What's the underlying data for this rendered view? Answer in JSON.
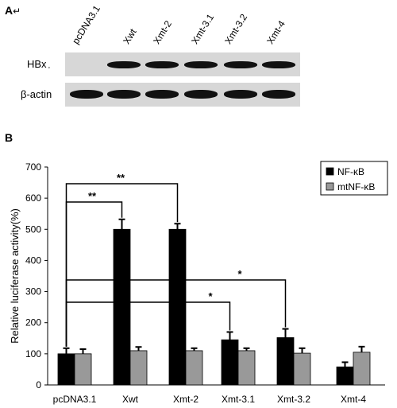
{
  "panel_a": {
    "label": "A",
    "label_mark": "↵",
    "lanes": [
      "pcDNA3.1",
      "Xwt",
      "Xmt-2",
      "Xmt-3.1",
      "Xmt-3.2",
      "Xmt-4"
    ],
    "rows": [
      {
        "label": "HBx",
        "mark": ",",
        "band_present": [
          0,
          1,
          1,
          1,
          1,
          1
        ]
      },
      {
        "label": "β-actin",
        "band_present": [
          1,
          1,
          1,
          1,
          1,
          1
        ]
      }
    ]
  },
  "panel_b": {
    "label": "B"
  },
  "chart_data": {
    "type": "bar",
    "ylabel": "Relative luciferase activity(%)",
    "xlabel": "",
    "categories": [
      "pcDNA3.1",
      "Xwt",
      "Xmt-2",
      "Xmt-3.1",
      "Xmt-3.2",
      "Xmt-4"
    ],
    "ylim": [
      0,
      700
    ],
    "yticks": [
      0,
      100,
      200,
      300,
      400,
      500,
      600,
      700
    ],
    "series": [
      {
        "name": "NF-κB",
        "color": "#000000",
        "values": [
          100,
          500,
          500,
          145,
          152,
          58
        ],
        "errors": [
          18,
          32,
          18,
          25,
          28,
          15
        ]
      },
      {
        "name": "mtNF-κB",
        "color": "#999999",
        "values": [
          100,
          110,
          110,
          110,
          102,
          105
        ],
        "errors": [
          15,
          12,
          8,
          8,
          16,
          18
        ]
      }
    ],
    "legend_position": "top-right",
    "significance": [
      {
        "from": 0,
        "to": 1,
        "label": "**"
      },
      {
        "from": 0,
        "to": 2,
        "label": "**"
      },
      {
        "from": 0,
        "to": 3,
        "label": "*"
      },
      {
        "from": 0,
        "to": 4,
        "label": "*"
      }
    ]
  }
}
